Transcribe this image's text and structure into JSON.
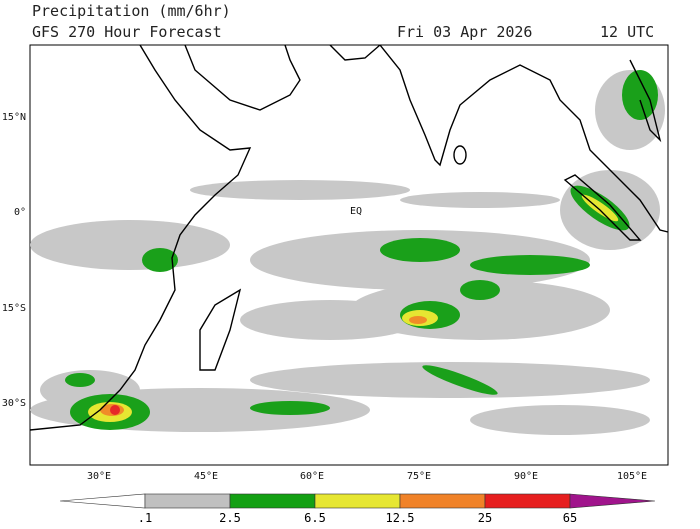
{
  "header": {
    "title": "Precipitation (mm/6hr)",
    "subtitle": "GFS 270 Hour Forecast",
    "date": "Fri 03 Apr 2026",
    "time": "12 UTC"
  },
  "map": {
    "lat_labels": [
      "15°N",
      "0°",
      "15°S",
      "30°S"
    ],
    "lon_labels": [
      "30°E",
      "45°E",
      "60°E",
      "75°E",
      "90°E",
      "105°E"
    ],
    "equator_label": "EQ"
  },
  "colorbar": {
    "labels": [
      ".1",
      "2.5",
      "6.5",
      "12.5",
      "25",
      "65"
    ]
  }
}
